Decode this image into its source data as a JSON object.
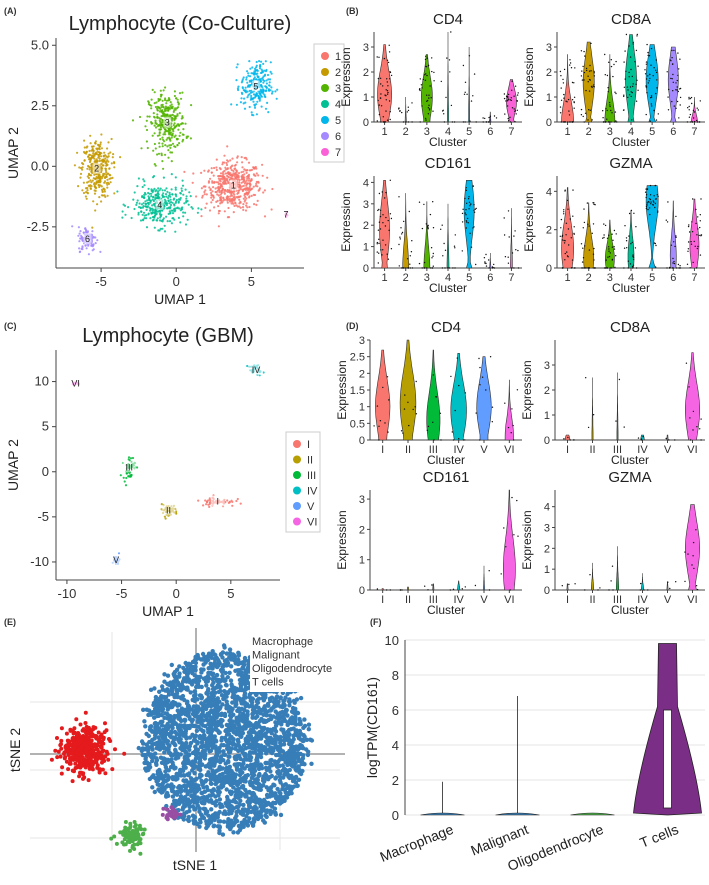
{
  "figure": {
    "panel_labels": [
      "(A)",
      "(B)",
      "(C)",
      "(D)",
      "(E)",
      "(F)"
    ]
  },
  "chart_data": [
    {
      "id": "A",
      "type": "scatter",
      "title": "Lymphocyte (Co-Culture)",
      "xlabel": "UMAP 1",
      "ylabel": "UMAP 2",
      "xlim": [
        -8,
        8.5
      ],
      "ylim": [
        -4.2,
        5.3
      ],
      "xticks": [
        -5,
        0,
        5
      ],
      "yticks": [
        -2.5,
        0.0,
        2.5,
        5.0
      ],
      "ytick_labels": [
        "-2.5",
        "0.0",
        "2.5",
        "5.0"
      ],
      "legend_title": "",
      "legend_position": "right",
      "clusters": [
        {
          "name": "1",
          "color": "#F8766D",
          "center": [
            3.8,
            -0.8
          ],
          "spread": [
            1.7,
            0.9
          ],
          "n": 500
        },
        {
          "name": "2",
          "color": "#C49A00",
          "center": [
            -5.3,
            -0.1
          ],
          "spread": [
            0.9,
            1.1
          ],
          "n": 330
        },
        {
          "name": "3",
          "color": "#53B400",
          "center": [
            -0.6,
            1.8
          ],
          "spread": [
            1.1,
            1.1
          ],
          "n": 320
        },
        {
          "name": "4",
          "color": "#00C094",
          "center": [
            -1.1,
            -1.6
          ],
          "spread": [
            1.7,
            0.8
          ],
          "n": 320
        },
        {
          "name": "5",
          "color": "#00B6EB",
          "center": [
            5.3,
            3.3
          ],
          "spread": [
            0.9,
            0.9
          ],
          "n": 230
        },
        {
          "name": "6",
          "color": "#A58AFF",
          "center": [
            -5.9,
            -3.0
          ],
          "spread": [
            0.55,
            0.45
          ],
          "n": 110
        },
        {
          "name": "7",
          "color": "#FB61D7",
          "center": [
            7.3,
            -2.0
          ],
          "spread": [
            0.12,
            0.1
          ],
          "n": 10
        }
      ]
    },
    {
      "id": "B",
      "type": "violin",
      "xlabel": "Cluster",
      "ylabel": "Expression",
      "categories": [
        "1",
        "2",
        "3",
        "4",
        "5",
        "6",
        "7"
      ],
      "colors": [
        "#F8766D",
        "#C49A00",
        "#53B400",
        "#00C094",
        "#00B6EB",
        "#A58AFF",
        "#FB61D7"
      ],
      "genes": [
        {
          "name": "CD4",
          "ylim": [
            0,
            3.6
          ],
          "yticks": [
            0,
            1,
            2,
            3
          ],
          "medians": [
            1.1,
            0,
            1.0,
            0,
            0,
            0,
            0.8
          ],
          "widths": [
            0.7,
            0.05,
            0.55,
            0.05,
            0.05,
            0.05,
            0.5
          ],
          "maxes": [
            3.1,
            1.0,
            2.7,
            3.6,
            3.0,
            0.4,
            1.7
          ]
        },
        {
          "name": "CD8A",
          "ylim": [
            0,
            3.6
          ],
          "yticks": [
            0,
            1,
            2,
            3
          ],
          "medians": [
            0,
            1.6,
            0,
            1.7,
            1.7,
            1.7,
            0
          ],
          "widths": [
            0.6,
            0.55,
            0.5,
            0.55,
            0.6,
            0.5,
            0.3
          ],
          "maxes": [
            2.7,
            3.2,
            2.7,
            3.5,
            3.1,
            3.0,
            1.0
          ]
        },
        {
          "name": "CD161",
          "ylim": [
            0,
            4.3
          ],
          "yticks": [
            0,
            1,
            2,
            3,
            4
          ],
          "medians": [
            1.8,
            0,
            0,
            0,
            2.7,
            0,
            0
          ],
          "widths": [
            0.5,
            0.3,
            0.3,
            0.1,
            0.5,
            0.05,
            0.1
          ],
          "maxes": [
            4.1,
            3.5,
            3.1,
            3.0,
            4.1,
            0.7,
            2.8
          ]
        },
        {
          "name": "GZMA",
          "ylim": [
            0,
            4.8
          ],
          "yticks": [
            0,
            2,
            4
          ],
          "medians": [
            1.0,
            0.5,
            0.5,
            0.6,
            3.5,
            0.6,
            1.2
          ],
          "widths": [
            0.6,
            0.5,
            0.45,
            0.3,
            0.6,
            0.3,
            0.45
          ],
          "maxes": [
            4.2,
            3.4,
            2.5,
            3.0,
            4.3,
            3.5,
            3.6
          ]
        }
      ]
    },
    {
      "id": "C",
      "type": "scatter",
      "title": "Lymphocyte (GBM)",
      "xlabel": "UMAP 1",
      "ylabel": "UMAP 2",
      "xlim": [
        -11,
        9.5
      ],
      "ylim": [
        -12,
        13.5
      ],
      "xticks": [
        -10,
        -5,
        0,
        5
      ],
      "yticks": [
        -10,
        -5,
        0,
        5,
        10
      ],
      "legend_position": "right",
      "clusters": [
        {
          "name": "I",
          "color": "#F8766D",
          "center": [
            3.8,
            -3.3
          ],
          "spread": [
            1.4,
            0.5
          ],
          "n": 60
        },
        {
          "name": "II",
          "color": "#B79F00",
          "center": [
            -0.7,
            -4.3
          ],
          "spread": [
            0.8,
            0.6
          ],
          "n": 45
        },
        {
          "name": "III",
          "color": "#00BA38",
          "center": [
            -4.3,
            0.5
          ],
          "spread": [
            0.5,
            1.2
          ],
          "n": 55
        },
        {
          "name": "IV",
          "color": "#00BFC4",
          "center": [
            7.3,
            11.3
          ],
          "spread": [
            0.6,
            0.5
          ],
          "n": 30
        },
        {
          "name": "V",
          "color": "#619CFF",
          "center": [
            -5.5,
            -9.8
          ],
          "spread": [
            0.3,
            0.5
          ],
          "n": 20
        },
        {
          "name": "VI",
          "color": "#F564E3",
          "center": [
            -9.2,
            9.8
          ],
          "spread": [
            0.4,
            0.15
          ],
          "n": 10
        }
      ]
    },
    {
      "id": "D",
      "type": "violin",
      "xlabel": "Cluster",
      "ylabel": "Expression",
      "categories": [
        "I",
        "II",
        "III",
        "IV",
        "V",
        "VI"
      ],
      "colors": [
        "#F8766D",
        "#B79F00",
        "#00BA38",
        "#00BFC4",
        "#619CFF",
        "#F564E3"
      ],
      "genes": [
        {
          "name": "CD4",
          "ylim": [
            0,
            3.0
          ],
          "yticks": [
            0,
            0.5,
            1,
            1.5,
            2,
            2.5,
            3
          ],
          "medians": [
            1.0,
            1.1,
            0.6,
            0.9,
            1.0,
            0.1
          ],
          "widths": [
            0.6,
            0.65,
            0.55,
            0.65,
            0.6,
            0.35
          ],
          "maxes": [
            2.7,
            3.0,
            2.7,
            2.6,
            2.5,
            1.8
          ]
        },
        {
          "name": "CD8A",
          "ylim": [
            0,
            4.0
          ],
          "yticks": [
            0,
            1,
            2,
            3
          ],
          "medians": [
            0,
            0,
            0,
            0,
            0,
            1.2
          ],
          "widths": [
            0.2,
            0.05,
            0.05,
            0.15,
            0.05,
            0.6
          ],
          "maxes": [
            0.2,
            2.5,
            2.7,
            0.2,
            0.2,
            3.5
          ]
        },
        {
          "name": "CD161",
          "ylim": [
            0,
            3.3
          ],
          "yticks": [
            0,
            1,
            2,
            3
          ],
          "medians": [
            0,
            0,
            0,
            0,
            0,
            0.7
          ],
          "widths": [
            0.05,
            0.05,
            0.05,
            0.1,
            0.05,
            0.5
          ],
          "maxes": [
            0.05,
            0.1,
            0.2,
            0.3,
            0.8,
            3.3
          ]
        },
        {
          "name": "GZMA",
          "ylim": [
            0,
            4.8
          ],
          "yticks": [
            0,
            1,
            2,
            3,
            4
          ],
          "medians": [
            0,
            0,
            0,
            0,
            0,
            2.0
          ],
          "widths": [
            0.05,
            0.1,
            0.1,
            0.1,
            0.05,
            0.6
          ],
          "maxes": [
            0.3,
            1.3,
            2.1,
            0.8,
            0.4,
            4.1
          ]
        }
      ]
    },
    {
      "id": "E",
      "type": "scatter",
      "xlabel": "tSNE 1",
      "ylabel": "tSNE 2",
      "legend_position": "top-right",
      "groups": [
        {
          "name": "Macrophage",
          "color": "#E41A1C"
        },
        {
          "name": "Malignant",
          "color": "#377EB8"
        },
        {
          "name": "Oligodendrocyte",
          "color": "#4DAF4A"
        },
        {
          "name": "T cells",
          "color": "#984EA3"
        }
      ]
    },
    {
      "id": "F",
      "type": "violin",
      "ylabel": "logTPM(CD161)",
      "ylim": [
        0,
        10
      ],
      "yticks": [
        0,
        2,
        4,
        6,
        8,
        10
      ],
      "categories": [
        "Macrophage",
        "Malignant",
        "Oligodendrocyte",
        "T cells"
      ],
      "colors": [
        "#377EB8",
        "#377EB8",
        "#4DAF4A",
        "#7B2E86"
      ],
      "maxes": [
        1.9,
        6.8,
        0.05,
        9.8
      ],
      "medians": [
        0,
        0,
        0,
        0
      ]
    }
  ]
}
